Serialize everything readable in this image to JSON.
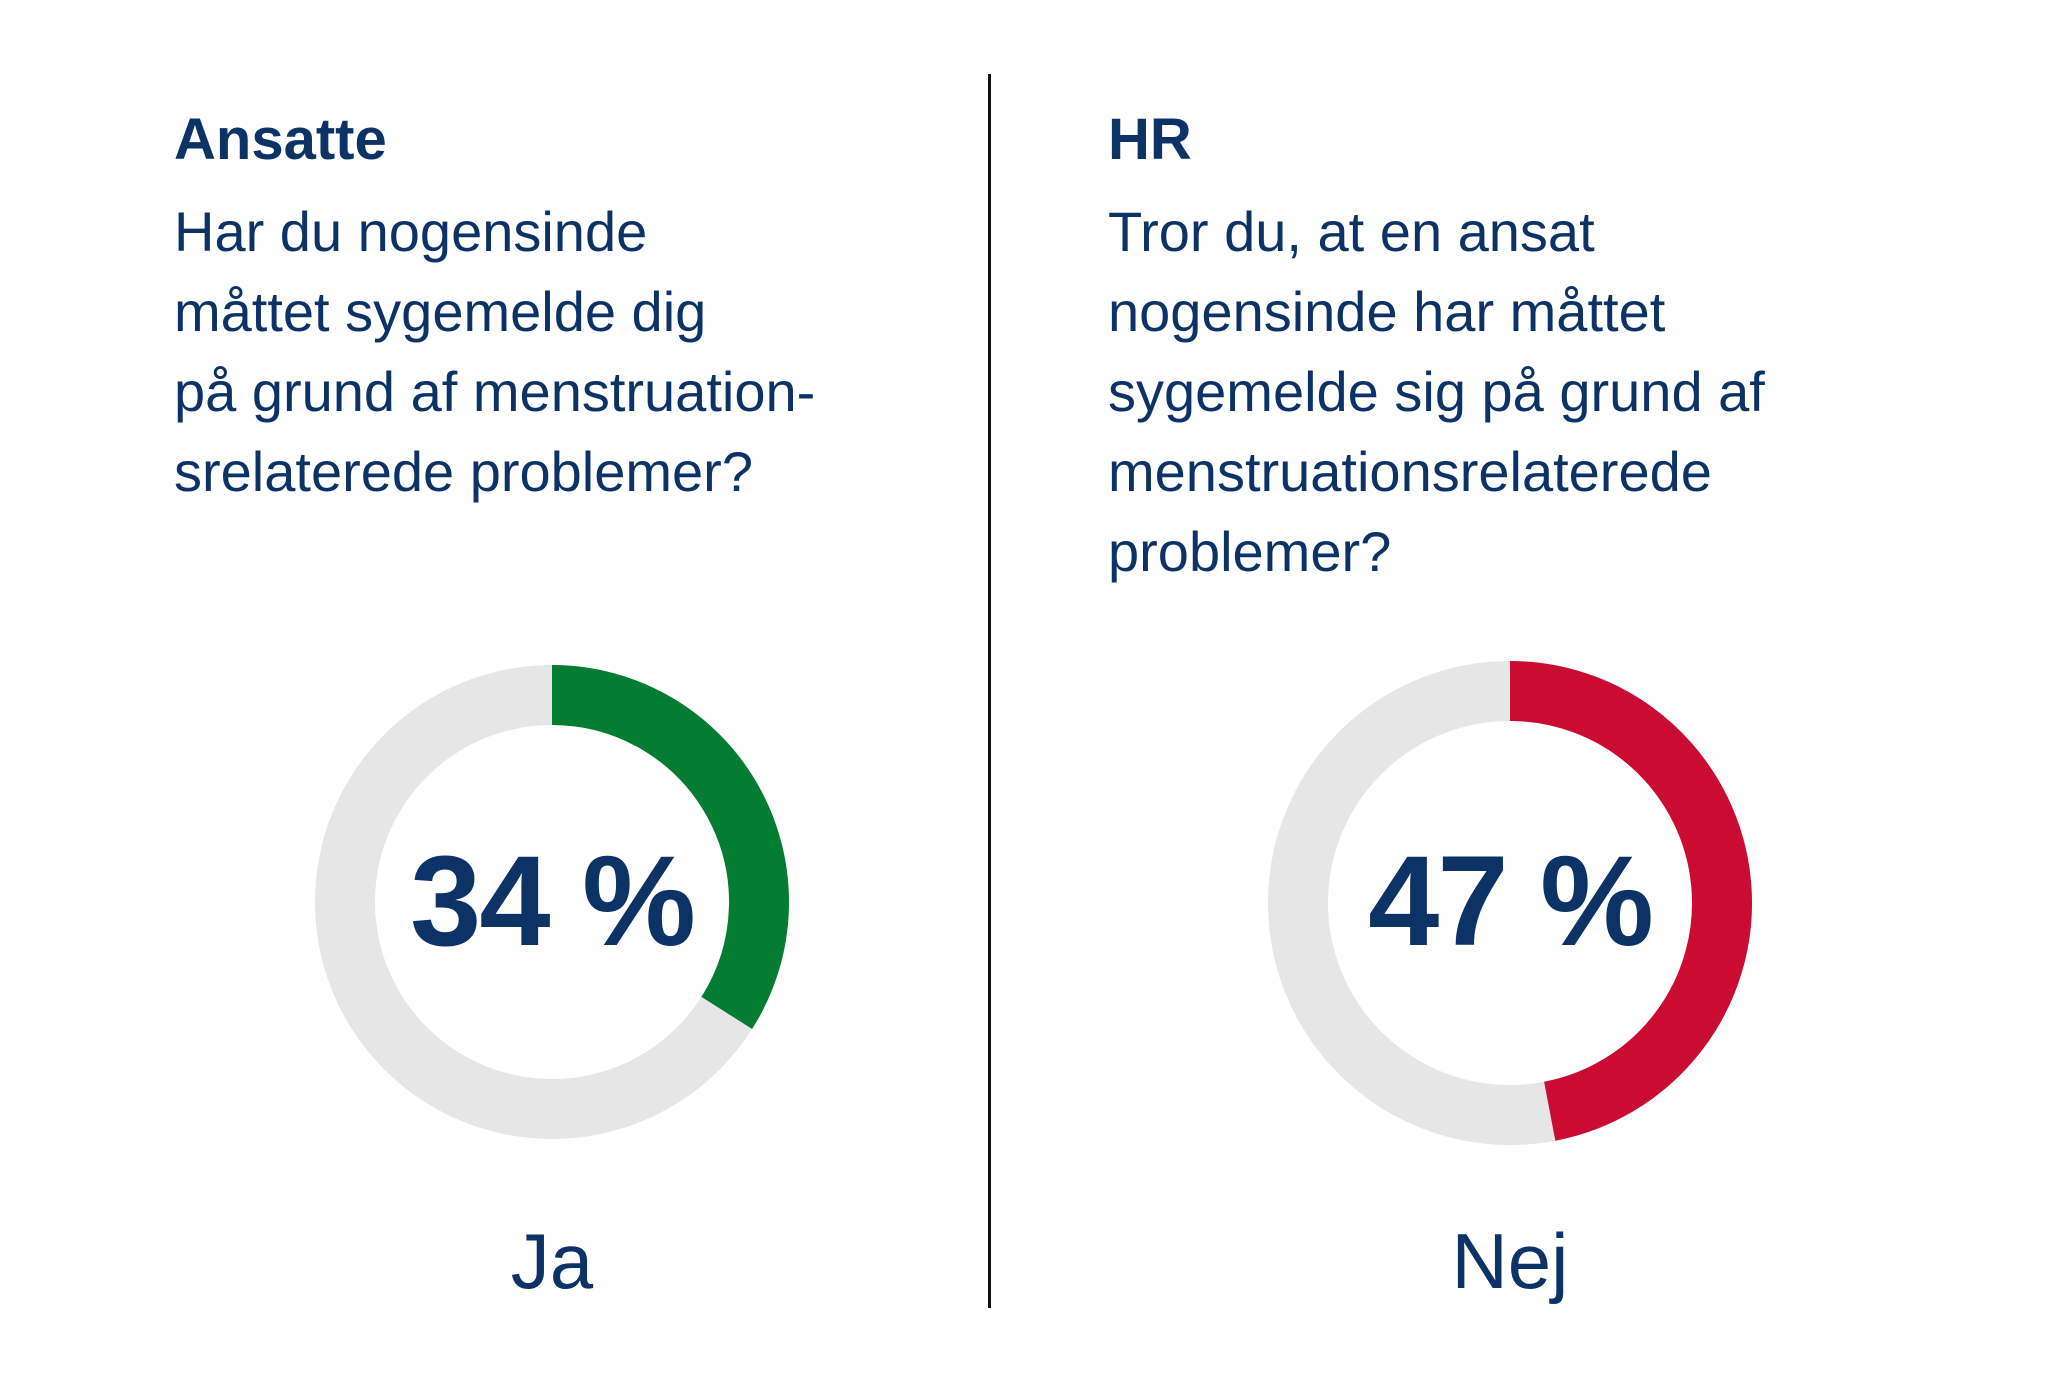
{
  "chart_data": [
    {
      "type": "donut",
      "heading": "Ansatte",
      "question": "Har du nogensinde\nmåttet sygemelde dig\npå grund af menstruation-\nsrelaterede problemer?",
      "value": 34,
      "value_label": "34 %",
      "answer": "Ja",
      "color": "#047d33",
      "track_color": "#e6e6e6"
    },
    {
      "type": "donut",
      "heading": "HR",
      "question": "Tror du, at en ansat\nnogensinde har måttet\nsygemelde sig på grund af\nmenstruationsrelaterede\nproblemer?",
      "value": 47,
      "value_label": "47 %",
      "answer": "Nej",
      "color": "#ca0c33",
      "track_color": "#e6e6e6"
    }
  ],
  "colors": {
    "text": "#0d3266",
    "divider": "#111111"
  }
}
